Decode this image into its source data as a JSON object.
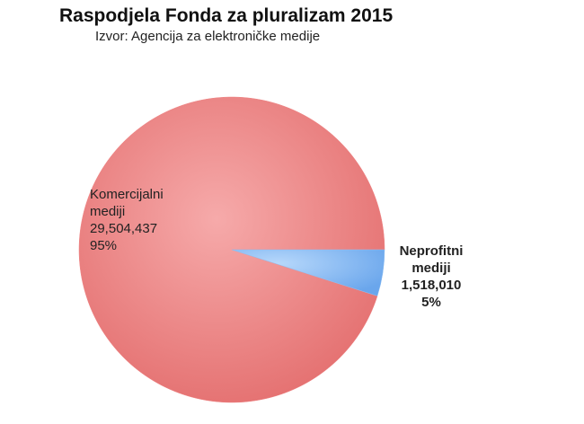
{
  "chart_data": {
    "type": "pie",
    "title": "Raspodjela Fonda za pluralizam 2015",
    "subtitle": "Izvor: Agencija za elektroničke medije",
    "categories": [
      "Komercijalni mediji",
      "Neprofitni mediji"
    ],
    "values": [
      29504437,
      1518010
    ],
    "value_labels": [
      "29,504,437",
      "1,518,010"
    ],
    "percents": [
      95,
      5
    ],
    "percent_labels": [
      "95%",
      "5%"
    ],
    "colors": [
      "#ef8484",
      "#8fc0f4"
    ]
  }
}
